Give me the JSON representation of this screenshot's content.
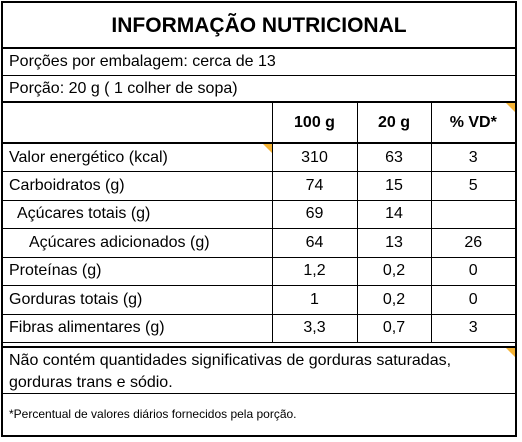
{
  "title": "INFORMAÇÃO NUTRICIONAL",
  "servings_per_package": "Porções por embalagem: cerca de 13",
  "serving_size": "Porção: 20 g ( 1 colher de sopa)",
  "columns": [
    "100 g",
    "20 g",
    "% VD*"
  ],
  "rows": [
    {
      "name": "Valor energético (kcal)",
      "per100": "310",
      "per_portion": "63",
      "vd": "3"
    },
    {
      "name": "Carboidratos (g)",
      "per100": "74",
      "per_portion": "15",
      "vd": "5"
    },
    {
      "name": "Açúcares totais (g)",
      "per100": "69",
      "per_portion": "14",
      "vd": ""
    },
    {
      "name": "Açúcares adicionados (g)",
      "per100": "64",
      "per_portion": "13",
      "vd": "26"
    },
    {
      "name": "Proteínas (g)",
      "per100": "1,2",
      "per_portion": "0,2",
      "vd": "0"
    },
    {
      "name": "Gorduras totais (g)",
      "per100": "1",
      "per_portion": "0,2",
      "vd": "0"
    },
    {
      "name": "Fibras alimentares (g)",
      "per100": "3,3",
      "per_portion": "0,7",
      "vd": "3"
    }
  ],
  "note": "Não contém quantidades significativas de gorduras saturadas, gorduras trans  e sódio.",
  "footnote": "*Percentual de valores diários fornecidos pela porção.",
  "colors": {
    "accent_triangle": "#f5b335",
    "border": "#000000"
  }
}
